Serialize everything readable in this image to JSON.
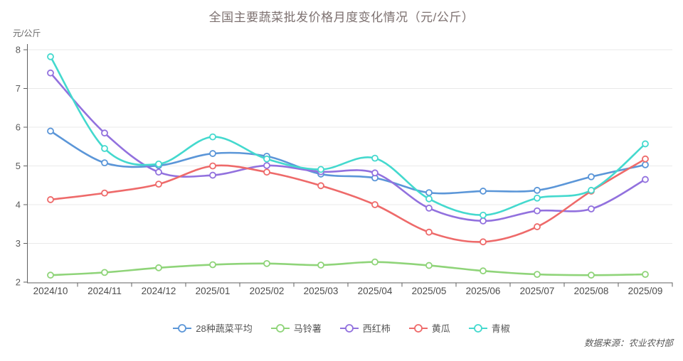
{
  "page": {
    "title": "全国主要蔬菜批发价格月度变化情况（元/公斤）",
    "unit_label": "元/公斤",
    "source": "数据来源：农业农村部"
  },
  "chart_data": {
    "type": "line",
    "smooth": true,
    "marker": "hollow-circle",
    "grid": true,
    "legend_position": "bottom",
    "title": "全国主要蔬菜批发价格月度变化情况（元/公斤）",
    "ylabel": "元/公斤",
    "ylim": [
      2,
      8
    ],
    "yticks": [
      2,
      3,
      4,
      5,
      6,
      7,
      8
    ],
    "categories": [
      "2024/10",
      "2024/11",
      "2024/12",
      "2025/01",
      "2025/02",
      "2025/03",
      "2025/04",
      "2025/05",
      "2025/06",
      "2025/07",
      "2025/08",
      "2025/09"
    ],
    "series": [
      {
        "name": "28种蔬菜平均",
        "color": "#5B96D8",
        "values": [
          5.9,
          5.08,
          5.01,
          5.32,
          5.25,
          4.79,
          4.69,
          4.31,
          4.35,
          4.37,
          4.72,
          5.03
        ]
      },
      {
        "name": "马铃薯",
        "color": "#8FD479",
        "values": [
          2.18,
          2.25,
          2.37,
          2.45,
          2.48,
          2.44,
          2.52,
          2.43,
          2.29,
          2.2,
          2.18,
          2.2
        ]
      },
      {
        "name": "西红柿",
        "color": "#9271DE",
        "values": [
          7.4,
          5.85,
          4.84,
          4.76,
          5.01,
          4.85,
          4.82,
          3.91,
          3.58,
          3.84,
          3.89,
          4.65
        ]
      },
      {
        "name": "黄瓜",
        "color": "#EE6A6A",
        "values": [
          4.13,
          4.3,
          4.53,
          5.0,
          4.84,
          4.49,
          4.0,
          3.29,
          3.04,
          3.43,
          4.35,
          5.18
        ]
      },
      {
        "name": "青椒",
        "color": "#44D9CE",
        "values": [
          7.82,
          5.45,
          5.05,
          5.75,
          5.18,
          4.91,
          5.2,
          4.15,
          3.73,
          4.17,
          4.37,
          5.57
        ]
      }
    ],
    "source_note": "数据来源：农业农村部"
  }
}
